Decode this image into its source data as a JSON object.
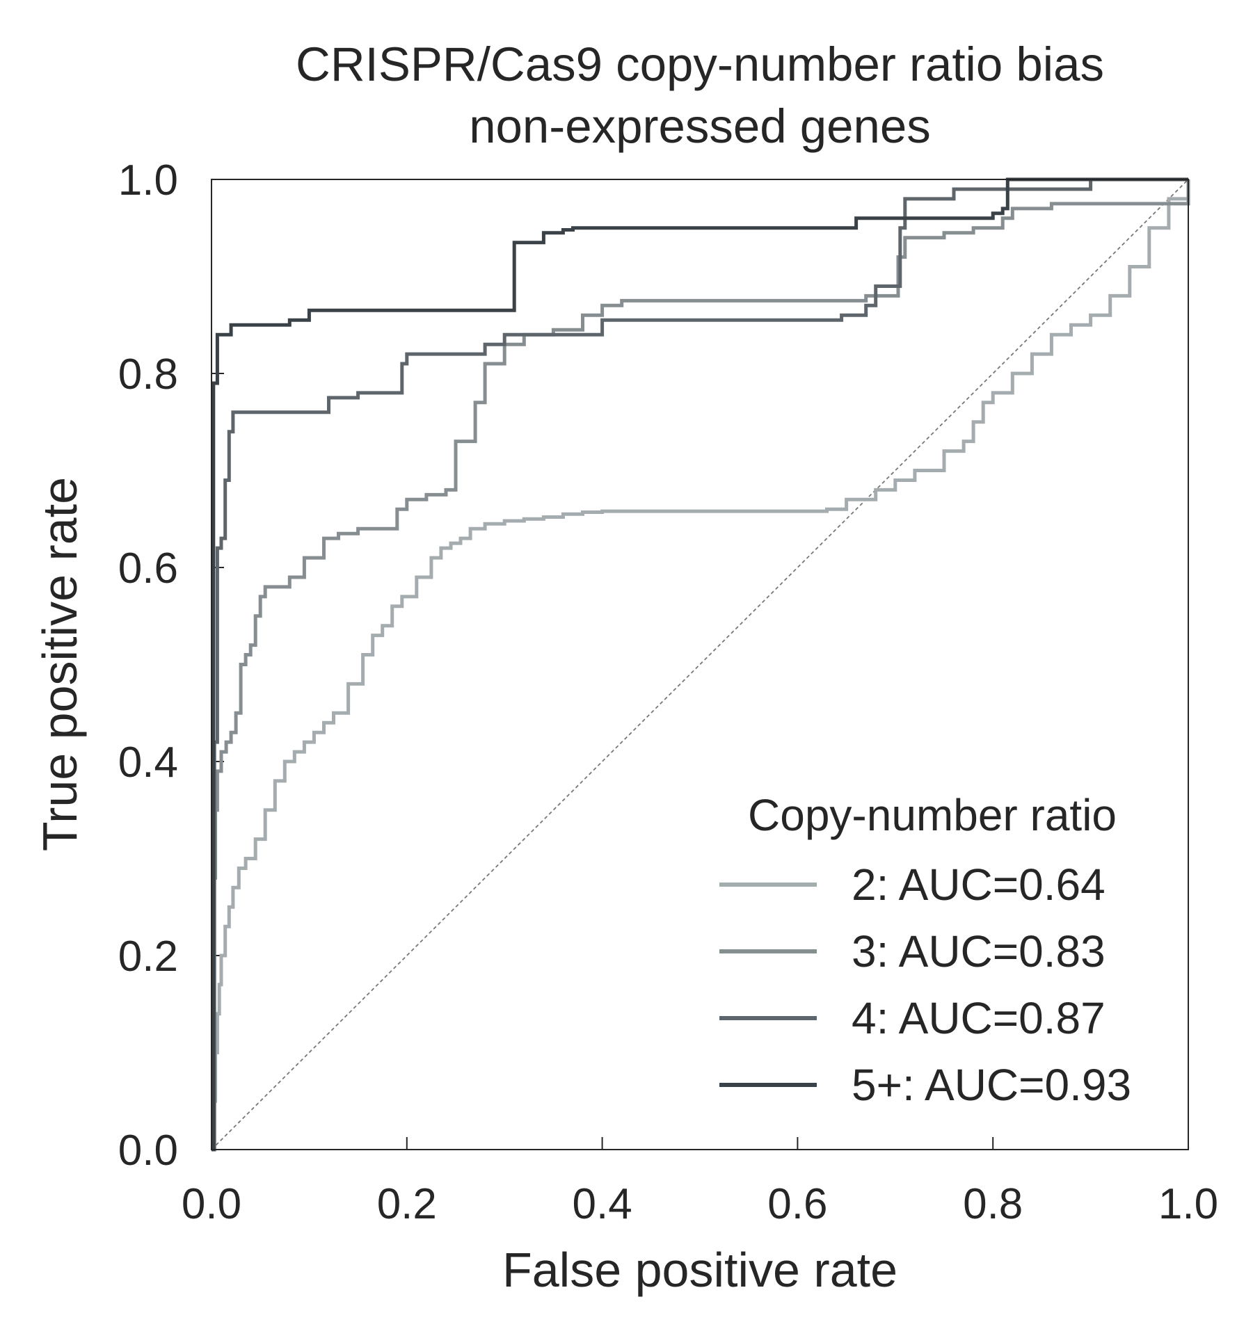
{
  "chart_data": {
    "type": "line",
    "title_line1": "CRISPR/Cas9 copy-number ratio bias",
    "title_line2": "non-expressed genes",
    "xlabel": "False positive rate",
    "ylabel": "True positive rate",
    "xlim": [
      0,
      1
    ],
    "ylim": [
      0,
      1
    ],
    "xticks": [
      "0.0",
      "0.2",
      "0.4",
      "0.6",
      "0.8",
      "1.0"
    ],
    "yticks": [
      "0.0",
      "0.2",
      "0.4",
      "0.6",
      "0.8",
      "1.0"
    ],
    "grid": false,
    "legend_title": "Copy-number ratio",
    "legend_position": "lower-right",
    "diagonal_reference": true,
    "series": [
      {
        "name": "2: AUC=0.64",
        "color": "#a4acaf",
        "x": [
          0,
          0.002,
          0.004,
          0.006,
          0.008,
          0.01,
          0.014,
          0.018,
          0.022,
          0.028,
          0.035,
          0.045,
          0.055,
          0.065,
          0.075,
          0.085,
          0.095,
          0.105,
          0.115,
          0.125,
          0.14,
          0.155,
          0.165,
          0.175,
          0.185,
          0.195,
          0.21,
          0.225,
          0.235,
          0.245,
          0.255,
          0.265,
          0.28,
          0.3,
          0.32,
          0.34,
          0.36,
          0.38,
          0.4,
          0.42,
          0.5,
          0.6,
          0.63,
          0.65,
          0.68,
          0.7,
          0.72,
          0.75,
          0.77,
          0.78,
          0.79,
          0.8,
          0.82,
          0.84,
          0.86,
          0.88,
          0.9,
          0.92,
          0.94,
          0.96,
          0.98,
          1.0
        ],
        "y": [
          0,
          0.05,
          0.1,
          0.14,
          0.17,
          0.2,
          0.23,
          0.25,
          0.27,
          0.29,
          0.3,
          0.32,
          0.35,
          0.38,
          0.4,
          0.41,
          0.42,
          0.43,
          0.44,
          0.45,
          0.48,
          0.51,
          0.53,
          0.54,
          0.56,
          0.57,
          0.59,
          0.61,
          0.62,
          0.625,
          0.63,
          0.64,
          0.645,
          0.648,
          0.65,
          0.652,
          0.655,
          0.657,
          0.658,
          0.658,
          0.658,
          0.658,
          0.66,
          0.67,
          0.68,
          0.69,
          0.7,
          0.72,
          0.73,
          0.75,
          0.77,
          0.78,
          0.8,
          0.82,
          0.84,
          0.85,
          0.86,
          0.88,
          0.91,
          0.95,
          0.98,
          1.0
        ]
      },
      {
        "name": "3: AUC=0.83",
        "color": "#878e92",
        "x": [
          0,
          0.002,
          0.004,
          0.006,
          0.01,
          0.015,
          0.02,
          0.025,
          0.03,
          0.035,
          0.04,
          0.045,
          0.05,
          0.055,
          0.06,
          0.065,
          0.08,
          0.095,
          0.115,
          0.13,
          0.15,
          0.17,
          0.19,
          0.2,
          0.215,
          0.22,
          0.24,
          0.25,
          0.265,
          0.27,
          0.28,
          0.3,
          0.32,
          0.35,
          0.38,
          0.4,
          0.42,
          0.5,
          0.6,
          0.65,
          0.67,
          0.7,
          0.703,
          0.71,
          0.75,
          0.78,
          0.81,
          0.82,
          0.85,
          0.86,
          0.87,
          1.0
        ],
        "y": [
          0,
          0.28,
          0.35,
          0.39,
          0.41,
          0.42,
          0.43,
          0.45,
          0.5,
          0.51,
          0.52,
          0.55,
          0.57,
          0.58,
          0.58,
          0.58,
          0.59,
          0.61,
          0.63,
          0.635,
          0.64,
          0.64,
          0.66,
          0.67,
          0.67,
          0.675,
          0.68,
          0.73,
          0.73,
          0.77,
          0.81,
          0.83,
          0.84,
          0.845,
          0.86,
          0.87,
          0.875,
          0.875,
          0.875,
          0.875,
          0.88,
          0.88,
          0.92,
          0.94,
          0.945,
          0.95,
          0.96,
          0.97,
          0.97,
          0.975,
          0.975,
          1.0
        ]
      },
      {
        "name": "4: AUC=0.87",
        "color": "#5e666b",
        "x": [
          0,
          0.003,
          0.006,
          0.01,
          0.014,
          0.018,
          0.022,
          0.05,
          0.1,
          0.12,
          0.15,
          0.18,
          0.195,
          0.2,
          0.26,
          0.28,
          0.3,
          0.4,
          0.5,
          0.6,
          0.645,
          0.66,
          0.67,
          0.68,
          0.7,
          0.705,
          0.71,
          0.76,
          0.8,
          0.83,
          0.86,
          0.9,
          1.0
        ],
        "y": [
          0,
          0.42,
          0.62,
          0.63,
          0.69,
          0.74,
          0.76,
          0.76,
          0.76,
          0.775,
          0.78,
          0.78,
          0.81,
          0.82,
          0.82,
          0.83,
          0.84,
          0.855,
          0.855,
          0.855,
          0.86,
          0.86,
          0.87,
          0.89,
          0.89,
          0.95,
          0.98,
          0.99,
          0.99,
          0.99,
          0.99,
          1.0,
          1.0
        ]
      },
      {
        "name": "5+: AUC=0.93",
        "color": "#3a4248",
        "x": [
          0,
          0.002,
          0.006,
          0.01,
          0.02,
          0.05,
          0.08,
          0.1,
          0.15,
          0.2,
          0.3,
          0.31,
          0.34,
          0.36,
          0.37,
          0.4,
          0.5,
          0.6,
          0.66,
          0.7,
          0.76,
          0.8,
          0.81,
          0.815,
          0.9,
          1.0
        ],
        "y": [
          0,
          0.79,
          0.84,
          0.84,
          0.85,
          0.85,
          0.855,
          0.865,
          0.865,
          0.865,
          0.865,
          0.935,
          0.945,
          0.948,
          0.95,
          0.95,
          0.95,
          0.95,
          0.96,
          0.96,
          0.96,
          0.965,
          0.97,
          1.0,
          1.0,
          1.0
        ]
      }
    ]
  }
}
